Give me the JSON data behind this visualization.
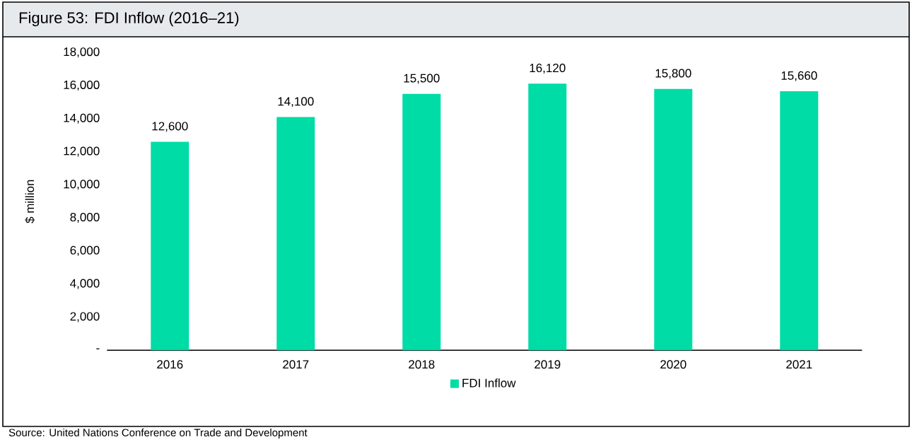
{
  "chart_data": {
    "type": "bar",
    "title": "Figure 53: FDI Inflow (2016–21)",
    "ylabel": "$ million",
    "categories": [
      "2016",
      "2017",
      "2018",
      "2019",
      "2020",
      "2021"
    ],
    "series": [
      {
        "name": "FDI Inflow",
        "color": "#00dca5",
        "values": [
          12600,
          14100,
          15500,
          16120,
          15800,
          15660
        ],
        "value_labels": [
          "12,600",
          "14,100",
          "15,500",
          "16,120",
          "15,800",
          "15,660"
        ]
      }
    ],
    "ylim": [
      0,
      18000
    ],
    "yticks": [
      {
        "value": 0,
        "label": "-"
      },
      {
        "value": 2000,
        "label": "2,000"
      },
      {
        "value": 4000,
        "label": "4,000"
      },
      {
        "value": 6000,
        "label": "6,000"
      },
      {
        "value": 8000,
        "label": "8,000"
      },
      {
        "value": 10000,
        "label": "10,000"
      },
      {
        "value": 12000,
        "label": "12,000"
      },
      {
        "value": 14000,
        "label": "14,000"
      },
      {
        "value": 16000,
        "label": "16,000"
      },
      {
        "value": 18000,
        "label": "18,000"
      }
    ],
    "legend": "bottom",
    "annotations": [
      "Source: United Nations Conference on Trade and Development"
    ]
  }
}
